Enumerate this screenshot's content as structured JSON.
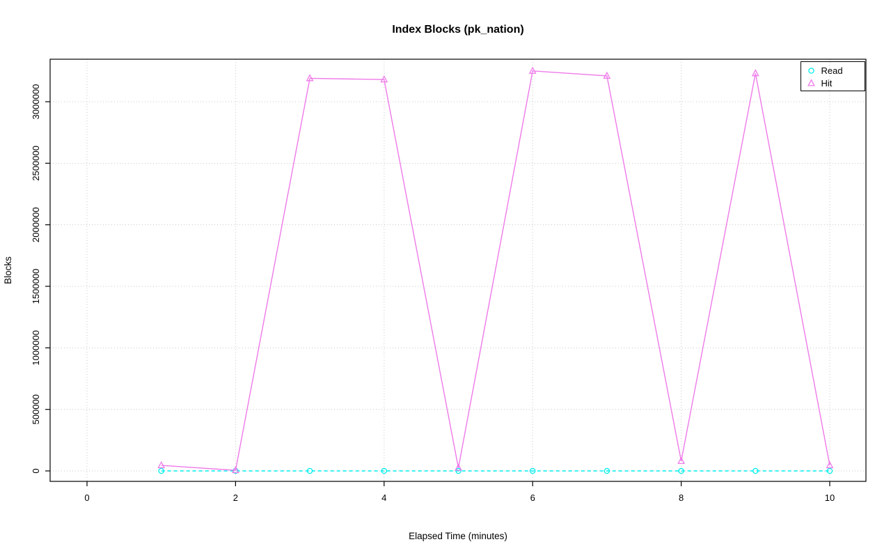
{
  "chart_data": {
    "type": "line",
    "title": "Index Blocks (pk_nation)",
    "xlabel": "Elapsed Time (minutes)",
    "ylabel": "Blocks",
    "x": [
      1,
      2,
      3,
      4,
      5,
      6,
      7,
      8,
      9,
      10
    ],
    "series": [
      {
        "name": "Read",
        "color": "#00EEEE",
        "marker": "circle",
        "linestyle": "dashed",
        "values": [
          0,
          0,
          0,
          0,
          0,
          0,
          0,
          0,
          0,
          0
        ]
      },
      {
        "name": "Hit",
        "color": "#EE7AE9",
        "marker": "triangle",
        "linestyle": "solid",
        "values": [
          45000,
          5000,
          3190000,
          3180000,
          25000,
          3250000,
          3210000,
          80000,
          3230000,
          45000
        ]
      }
    ],
    "xlim": [
      0,
      10
    ],
    "ylim": [
      0,
      3350000
    ],
    "xticks": [
      0,
      2,
      4,
      6,
      8,
      10
    ],
    "yticks": [
      0,
      500000,
      1000000,
      1500000,
      2000000,
      2500000,
      3000000
    ],
    "grid": true,
    "grid_color": "#c8c8c8",
    "legend_position": "top-right",
    "legend_labels": [
      "Read",
      "Hit"
    ]
  }
}
